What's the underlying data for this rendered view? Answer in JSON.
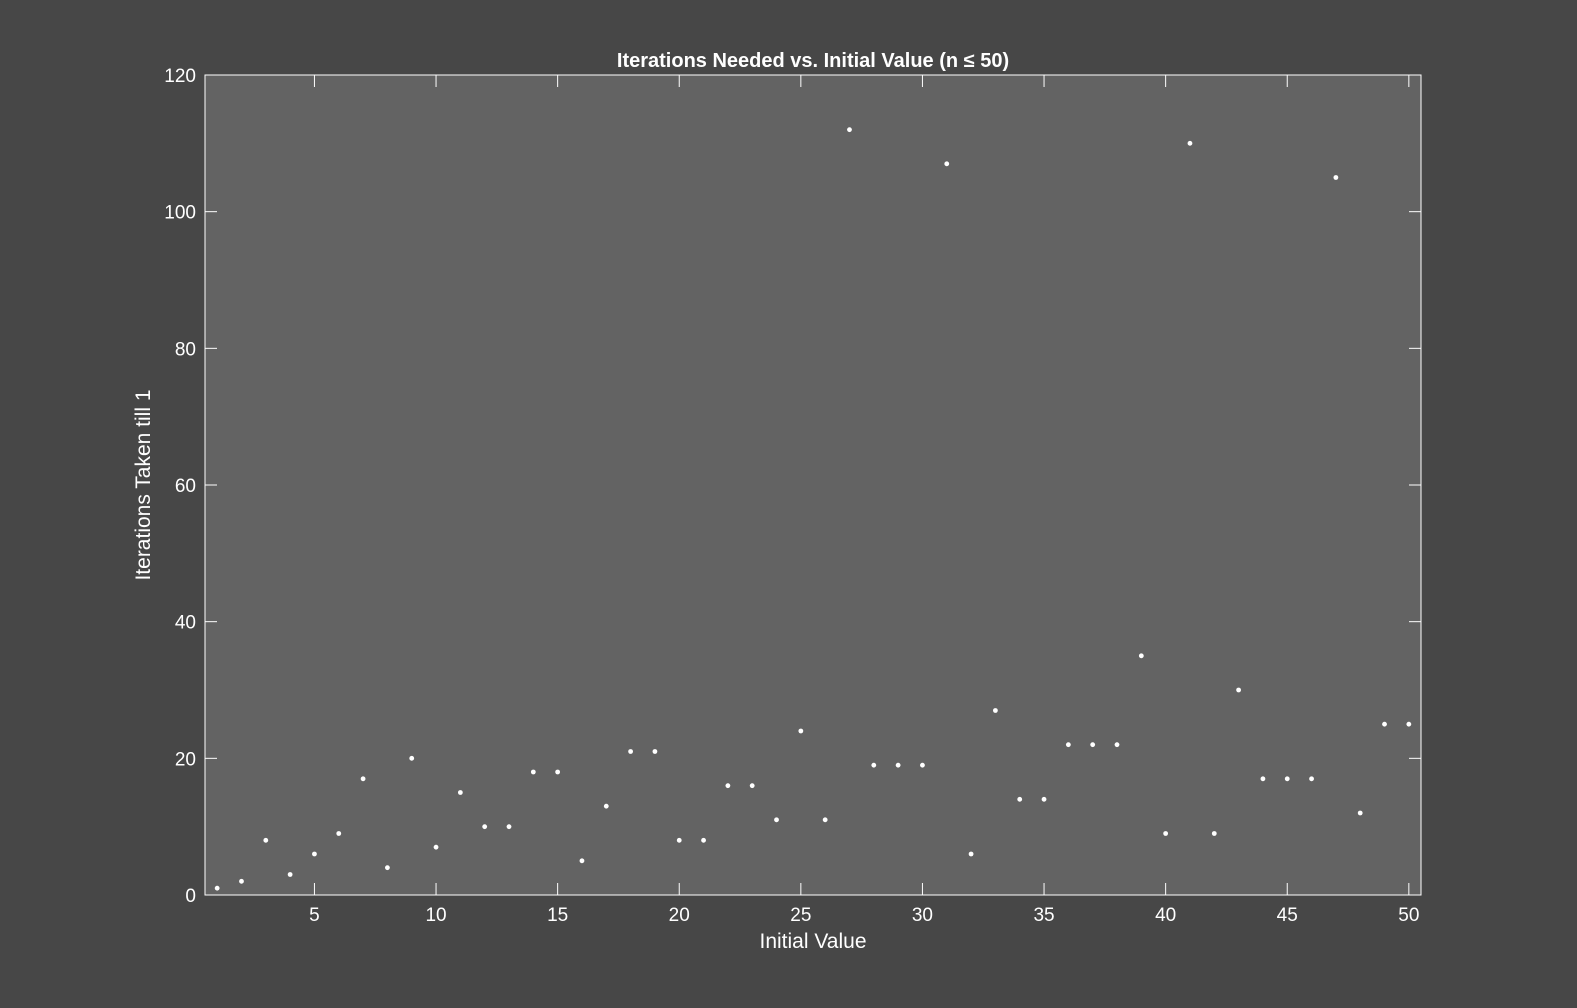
{
  "figure": {
    "background": "#474747"
  },
  "chart_data": {
    "type": "scatter",
    "title": "Iterations Needed vs. Initial Value (n ≤ 50)",
    "xlabel": "Initial Value",
    "ylabel": "Iterations Taken till 1",
    "xlim": [
      0.5,
      50.5
    ],
    "ylim": [
      0,
      120
    ],
    "xticks": [
      5,
      10,
      15,
      20,
      25,
      30,
      35,
      40,
      45,
      50
    ],
    "yticks": [
      0,
      20,
      40,
      60,
      80,
      100,
      120
    ],
    "grid": false,
    "legend": "none",
    "colors": {
      "axes_bg": "#636363",
      "axes_line": "#ffffff",
      "marker": "#ffffff",
      "text": "#ffffff"
    },
    "series": [
      {
        "x": [
          1,
          2,
          3,
          4,
          5,
          6,
          7,
          8,
          9,
          10,
          11,
          12,
          13,
          14,
          15,
          16,
          17,
          18,
          19,
          20,
          21,
          22,
          23,
          24,
          25,
          26,
          27,
          28,
          29,
          30,
          31,
          32,
          33,
          34,
          35,
          36,
          37,
          38,
          39,
          40,
          41,
          42,
          43,
          44,
          45,
          46,
          47,
          48,
          49,
          50
        ],
        "y": [
          1,
          2,
          8,
          3,
          6,
          9,
          17,
          4,
          20,
          7,
          15,
          10,
          10,
          18,
          18,
          5,
          13,
          21,
          21,
          8,
          8,
          16,
          16,
          11,
          24,
          11,
          112,
          19,
          19,
          19,
          107,
          6,
          27,
          14,
          14,
          22,
          22,
          22,
          35,
          9,
          110,
          9,
          30,
          17,
          17,
          17,
          105,
          12,
          25,
          25
        ]
      }
    ]
  }
}
